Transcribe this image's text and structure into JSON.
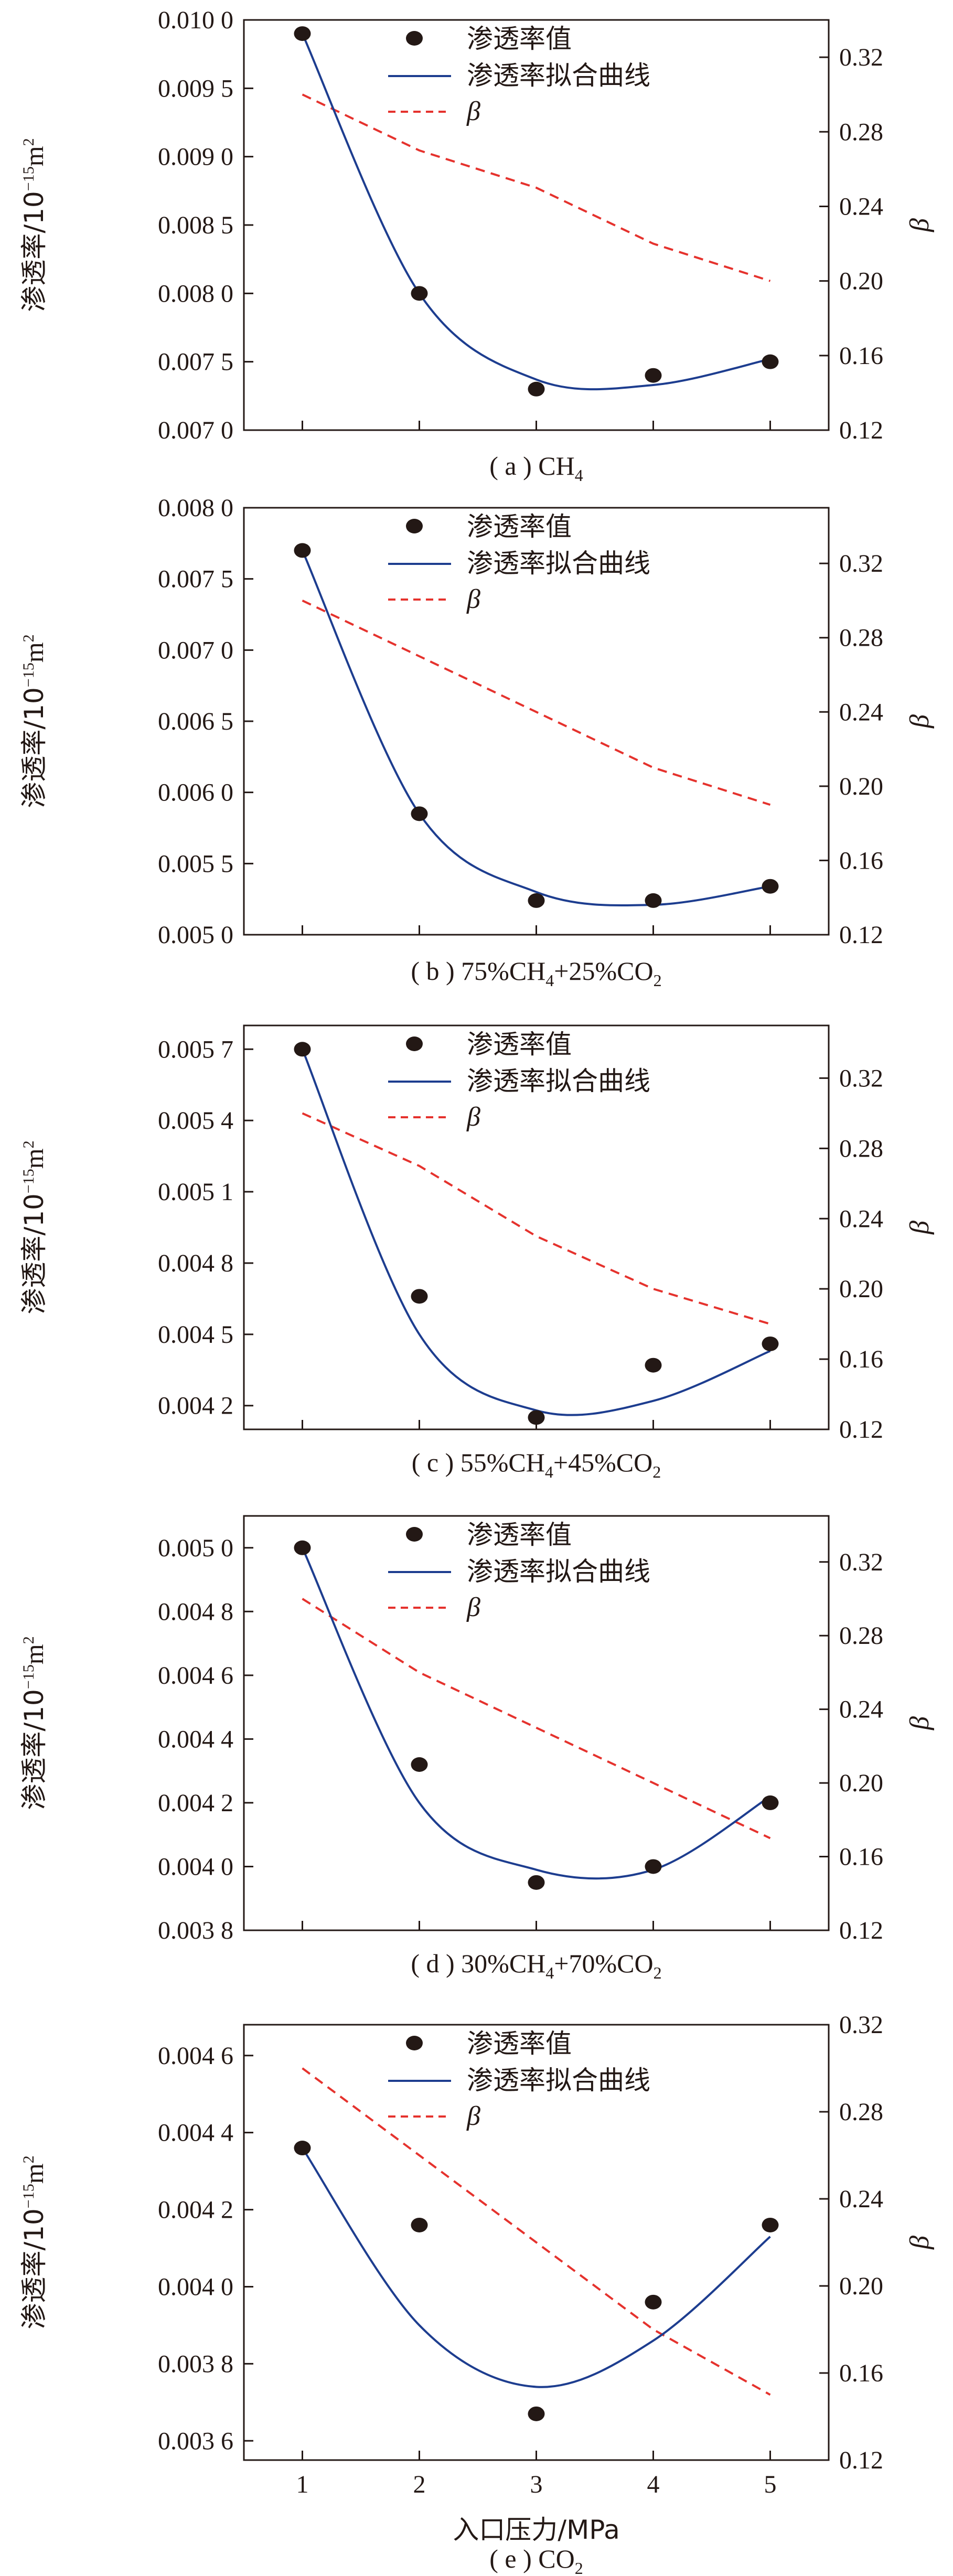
{
  "chart_data": [
    {
      "type": "scatter",
      "panel_label": "( a ) CH",
      "panel_label_sub": "4",
      "panel_label_rest": "",
      "ylabel": "渗透率/10",
      "ylabel_sup": "−15",
      "ylabel_unit": "m",
      "ylabel_unit_sup": "2",
      "y2label": "β",
      "x": [
        1,
        2,
        3,
        4,
        5
      ],
      "xlim": [
        0.5,
        5.5
      ],
      "ylim": [
        0.007,
        0.01
      ],
      "yticks": [
        "0.007 0",
        "0.007 5",
        "0.008 0",
        "0.008 5",
        "0.009 0",
        "0.009 5",
        "0.010 0"
      ],
      "y2lim": [
        0.12,
        0.34
      ],
      "y2ticks": [
        "0.12",
        "0.16",
        "0.20",
        "0.24",
        "0.28",
        "0.32"
      ],
      "series": [
        {
          "name": "渗透率值",
          "type": "scatter",
          "values": [
            0.0099,
            0.008,
            0.0073,
            0.0074,
            0.0075
          ]
        },
        {
          "name": "渗透率拟合曲线",
          "type": "line",
          "values": [
            0.0099,
            0.008,
            0.00737,
            0.00733,
            0.00752
          ]
        },
        {
          "name": "β",
          "type": "dashed",
          "axis": "right",
          "values": [
            0.3,
            0.27,
            0.25,
            0.22,
            0.2
          ]
        }
      ],
      "legend_position": "top-center",
      "color_points": "#231815",
      "color_fit": "#1d3d8f",
      "color_beta": "#e5322d"
    },
    {
      "type": "scatter",
      "panel_label": "( b ) 75%CH",
      "panel_label_sub": "4",
      "panel_label_rest": "+25%CO",
      "panel_label_sub2": "2",
      "ylabel": "渗透率/10",
      "ylabel_sup": "−15",
      "ylabel_unit": "m",
      "ylabel_unit_sup": "2",
      "y2label": "β",
      "x": [
        1,
        2,
        3,
        4,
        5
      ],
      "xlim": [
        0.5,
        5.5
      ],
      "ylim": [
        0.005,
        0.008
      ],
      "yticks": [
        "0.005 0",
        "0.005 5",
        "0.006 0",
        "0.006 5",
        "0.007 0",
        "0.007 5",
        "0.008 0"
      ],
      "y2lim": [
        0.12,
        0.35
      ],
      "y2ticks": [
        "0.12",
        "0.16",
        "0.20",
        "0.24",
        "0.28",
        "0.32"
      ],
      "series": [
        {
          "name": "渗透率值",
          "type": "scatter",
          "values": [
            0.0077,
            0.00585,
            0.00524,
            0.00524,
            0.00534
          ]
        },
        {
          "name": "渗透率拟合曲线",
          "type": "line",
          "values": [
            0.0077,
            0.00585,
            0.0053,
            0.00521,
            0.00534
          ]
        },
        {
          "name": "β",
          "type": "dashed",
          "axis": "right",
          "values": [
            0.3,
            0.27,
            0.24,
            0.21,
            0.19
          ]
        }
      ],
      "legend_position": "top-center",
      "color_points": "#231815",
      "color_fit": "#1d3d8f",
      "color_beta": "#e5322d"
    },
    {
      "type": "scatter",
      "panel_label": "( c ) 55%CH",
      "panel_label_sub": "4",
      "panel_label_rest": "+45%CO",
      "panel_label_sub2": "2",
      "ylabel": "渗透率/10",
      "ylabel_sup": "−15",
      "ylabel_unit": "m",
      "ylabel_unit_sup": "2",
      "y2label": "β",
      "x": [
        1,
        2,
        3,
        4,
        5
      ],
      "xlim": [
        0.5,
        5.5
      ],
      "ylim": [
        0.0041,
        0.0058
      ],
      "yticks": [
        "0.004 2",
        "0.004 5",
        "0.004 8",
        "0.005 1",
        "0.005 4",
        "0.005 7"
      ],
      "ytick_values": [
        0.0042,
        0.0045,
        0.0048,
        0.0051,
        0.0054,
        0.0057
      ],
      "y2lim": [
        0.12,
        0.35
      ],
      "y2ticks": [
        "0.12",
        "0.16",
        "0.20",
        "0.24",
        "0.28",
        "0.32"
      ],
      "series": [
        {
          "name": "渗透率值",
          "type": "scatter",
          "values": [
            0.0057,
            0.00466,
            0.00415,
            0.00437,
            0.00446
          ]
        },
        {
          "name": "渗透率拟合曲线",
          "type": "line",
          "values": [
            0.0057,
            0.0045,
            0.00418,
            0.00422,
            0.00443
          ]
        },
        {
          "name": "β",
          "type": "dashed",
          "axis": "right",
          "values": [
            0.3,
            0.27,
            0.23,
            0.2,
            0.18
          ]
        }
      ],
      "legend_position": "top-center",
      "color_points": "#231815",
      "color_fit": "#1d3d8f",
      "color_beta": "#e5322d"
    },
    {
      "type": "scatter",
      "panel_label": "( d ) 30%CH",
      "panel_label_sub": "4",
      "panel_label_rest": "+70%CO",
      "panel_label_sub2": "2",
      "ylabel": "渗透率/10",
      "ylabel_sup": "−15",
      "ylabel_unit": "m",
      "ylabel_unit_sup": "2",
      "y2label": "β",
      "x": [
        1,
        2,
        3,
        4,
        5
      ],
      "xlim": [
        0.5,
        5.5
      ],
      "ylim": [
        0.0038,
        0.0051
      ],
      "yticks": [
        "0.003 8",
        "0.004 0",
        "0.004 2",
        "0.004 4",
        "0.004 6",
        "0.004 8",
        "0.005 0"
      ],
      "ytick_values": [
        0.0038,
        0.004,
        0.0042,
        0.0044,
        0.0046,
        0.0048,
        0.005
      ],
      "y2lim": [
        0.12,
        0.345
      ],
      "y2ticks": [
        "0.12",
        "0.16",
        "0.20",
        "0.24",
        "0.28",
        "0.32"
      ],
      "series": [
        {
          "name": "渗透率值",
          "type": "scatter",
          "values": [
            0.005,
            0.00432,
            0.00395,
            0.004,
            0.0042
          ]
        },
        {
          "name": "渗透率拟合曲线",
          "type": "line",
          "values": [
            0.005,
            0.0042,
            0.00399,
            0.00399,
            0.00422
          ]
        },
        {
          "name": "β",
          "type": "dashed",
          "axis": "right",
          "values": [
            0.3,
            0.26,
            0.23,
            0.2,
            0.17
          ]
        }
      ],
      "legend_position": "top-center",
      "color_points": "#231815",
      "color_fit": "#1d3d8f",
      "color_beta": "#e5322d"
    },
    {
      "type": "scatter",
      "panel_label": "( e ) CO",
      "panel_label_sub": "2",
      "panel_label_rest": "",
      "ylabel": "渗透率/10",
      "ylabel_sup": "−15",
      "ylabel_unit": "m",
      "ylabel_unit_sup": "2",
      "y2label": "β",
      "xlabel": "入口压力/MPa",
      "xticks": [
        "1",
        "2",
        "3",
        "4",
        "5"
      ],
      "x": [
        1,
        2,
        3,
        4,
        5
      ],
      "xlim": [
        0.5,
        5.5
      ],
      "ylim": [
        0.00355,
        0.00468
      ],
      "yticks": [
        "0.003 6",
        "0.003 8",
        "0.004 0",
        "0.004 2",
        "0.004 4",
        "0.004 6"
      ],
      "ytick_values": [
        0.0036,
        0.0038,
        0.004,
        0.0042,
        0.0044,
        0.0046
      ],
      "y2lim": [
        0.12,
        0.32
      ],
      "y2ticks": [
        "0.12",
        "0.16",
        "0.20",
        "0.24",
        "0.28",
        "0.32"
      ],
      "series": [
        {
          "name": "渗透率值",
          "type": "scatter",
          "values": [
            0.00436,
            0.00416,
            0.00367,
            0.00396,
            0.00416
          ]
        },
        {
          "name": "渗透率拟合曲线",
          "type": "line",
          "values": [
            0.00436,
            0.0039,
            0.00374,
            0.00386,
            0.00413
          ]
        },
        {
          "name": "β",
          "type": "dashed",
          "axis": "right",
          "values": [
            0.3,
            0.26,
            0.22,
            0.18,
            0.15
          ]
        }
      ],
      "legend_position": "top-center",
      "color_points": "#231815",
      "color_fit": "#1d3d8f",
      "color_beta": "#e5322d"
    }
  ]
}
